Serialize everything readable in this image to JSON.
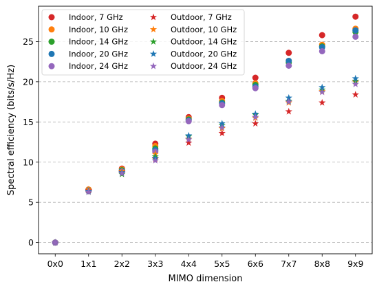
{
  "chart_data": {
    "type": "scatter",
    "title": "",
    "xlabel": "MIMO dimension",
    "ylabel": "Spectral efficiency (bits/s/Hz)",
    "categories": [
      "0x0",
      "1x1",
      "2x2",
      "3x3",
      "4x4",
      "5x5",
      "6x6",
      "7x7",
      "8x8",
      "9x9"
    ],
    "yticks": [
      0,
      5,
      10,
      15,
      20,
      25
    ],
    "ylim": [
      -1.4,
      29.4
    ],
    "grid": "horizontal dashed",
    "legend_placement": "top-left",
    "legend_columns": 2,
    "series": [
      {
        "name": "Indoor, 7 GHz",
        "marker": "circle",
        "color": "#d62728",
        "values": [
          0,
          6.5,
          9.2,
          12.3,
          15.6,
          18.0,
          20.5,
          23.6,
          25.8,
          28.1
        ]
      },
      {
        "name": "Indoor, 10 GHz",
        "marker": "circle",
        "color": "#ff7f0e",
        "values": [
          0,
          6.6,
          9.1,
          12.0,
          15.4,
          17.6,
          19.8,
          22.6,
          24.6,
          26.6
        ]
      },
      {
        "name": "Indoor, 14 GHz",
        "marker": "circle",
        "color": "#2ca02c",
        "values": [
          0,
          6.4,
          9.0,
          11.7,
          15.3,
          17.4,
          19.6,
          22.4,
          24.4,
          26.2
        ]
      },
      {
        "name": "Indoor, 20 GHz",
        "marker": "circle",
        "color": "#1f77b4",
        "values": [
          0,
          6.5,
          8.9,
          11.5,
          15.2,
          17.3,
          19.4,
          22.6,
          24.3,
          26.4
        ]
      },
      {
        "name": "Indoor, 24 GHz",
        "marker": "circle",
        "color": "#9467bd",
        "values": [
          0,
          6.4,
          8.8,
          11.3,
          15.1,
          17.1,
          19.2,
          22.0,
          23.8,
          25.6
        ]
      },
      {
        "name": "Outdoor, 7 GHz",
        "marker": "star",
        "color": "#d62728",
        "values": [
          0,
          6.5,
          8.8,
          10.4,
          12.4,
          13.6,
          14.8,
          16.3,
          17.4,
          18.4
        ]
      },
      {
        "name": "Outdoor, 10 GHz",
        "marker": "star",
        "color": "#ff7f0e",
        "values": [
          0,
          6.6,
          8.9,
          11.0,
          12.9,
          14.2,
          15.5,
          17.4,
          18.8,
          20.0
        ]
      },
      {
        "name": "Outdoor, 14 GHz",
        "marker": "star",
        "color": "#2ca02c",
        "values": [
          0,
          6.3,
          8.5,
          10.7,
          13.2,
          14.6,
          15.9,
          17.6,
          19.0,
          20.1
        ]
      },
      {
        "name": "Outdoor, 20 GHz",
        "marker": "star",
        "color": "#1f77b4",
        "values": [
          0,
          6.4,
          8.7,
          10.5,
          13.3,
          14.8,
          16.0,
          18.0,
          19.3,
          20.4
        ]
      },
      {
        "name": "Outdoor, 24 GHz",
        "marker": "star",
        "color": "#9467bd",
        "values": [
          0,
          6.3,
          8.6,
          10.2,
          12.8,
          14.3,
          15.6,
          17.5,
          18.7,
          19.7
        ]
      }
    ]
  }
}
